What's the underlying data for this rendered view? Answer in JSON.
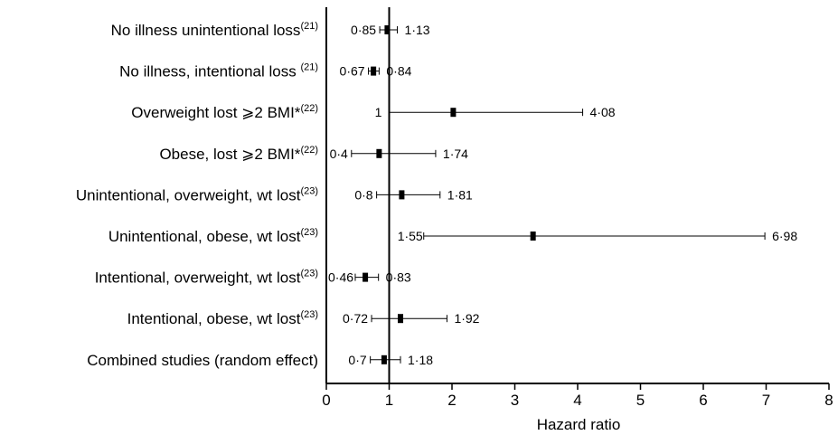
{
  "chart_data": {
    "type": "forest",
    "xlabel": "Hazard ratio",
    "xlim": [
      0,
      8
    ],
    "x_ticks": [
      "0",
      "1",
      "2",
      "3",
      "4",
      "5",
      "6",
      "7",
      "8"
    ],
    "reference_line": 1,
    "rows": [
      {
        "label": "No illness unintentional loss",
        "ref": "(21)",
        "estimate": 0.97,
        "lower": 0.85,
        "upper": 1.13,
        "lower_label": "0·85",
        "upper_label": "1·13"
      },
      {
        "label": "No illness, intentional loss ",
        "ref": "(21)",
        "estimate": 0.75,
        "lower": 0.67,
        "upper": 0.84,
        "lower_label": "0·67",
        "upper_label": "0·84"
      },
      {
        "label": "Overweight lost ⩾2 BMI*",
        "ref": "(22)",
        "estimate": 2.02,
        "lower": 1.0,
        "upper": 4.08,
        "lower_label": "1",
        "upper_label": "4·08"
      },
      {
        "label": "Obese, lost ⩾2 BMI*",
        "ref": "(22)",
        "estimate": 0.84,
        "lower": 0.4,
        "upper": 1.74,
        "lower_label": "0·4",
        "upper_label": "1·74"
      },
      {
        "label": "Unintentional, overweight, wt lost",
        "ref": "(23)",
        "estimate": 1.2,
        "lower": 0.8,
        "upper": 1.81,
        "lower_label": "0·8",
        "upper_label": "1·81"
      },
      {
        "label": "Unintentional, obese, wt lost",
        "ref": "(23)",
        "estimate": 3.29,
        "lower": 1.55,
        "upper": 6.98,
        "lower_label": "1·55",
        "upper_label": "6·98"
      },
      {
        "label": "Intentional, overweight, wt lost",
        "ref": "(23)",
        "estimate": 0.62,
        "lower": 0.46,
        "upper": 0.83,
        "lower_label": "0·46",
        "upper_label": "0·83"
      },
      {
        "label": "Intentional, obese, wt lost",
        "ref": "(23)",
        "estimate": 1.18,
        "lower": 0.72,
        "upper": 1.92,
        "lower_label": "0·72",
        "upper_label": "1·92"
      },
      {
        "label": "Combined studies (random effect)",
        "ref": "",
        "estimate": 0.92,
        "lower": 0.7,
        "upper": 1.18,
        "lower_label": "0·7",
        "upper_label": "1·18"
      }
    ]
  }
}
